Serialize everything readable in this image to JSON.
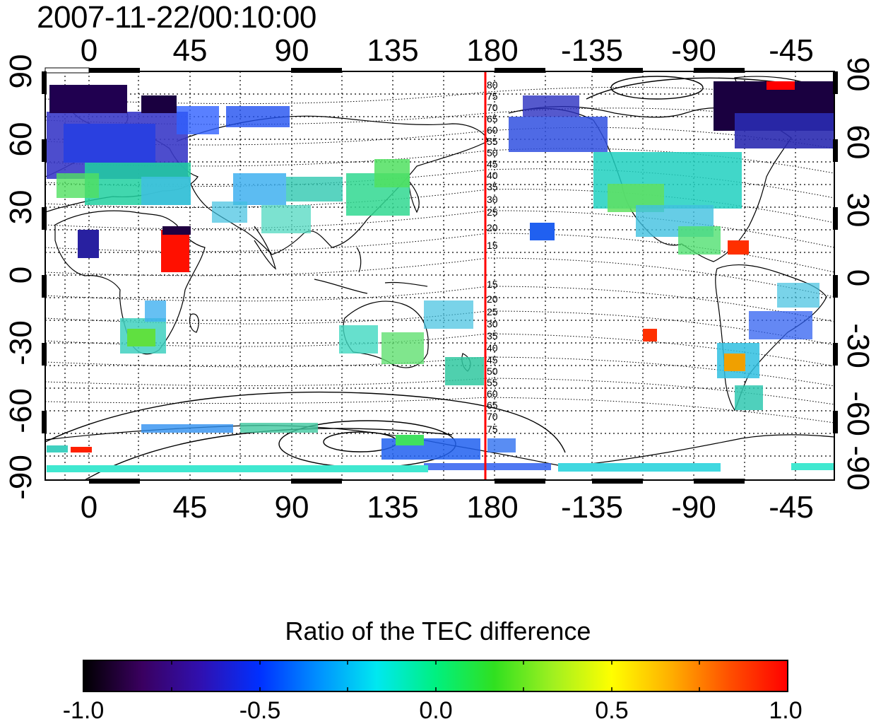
{
  "header": {
    "timestamp": "2007-11-22/00:10:00"
  },
  "map": {
    "top_axis_labels": [
      "0",
      "45",
      "90",
      "135",
      "180",
      "-135",
      "-90",
      "-45"
    ],
    "bottom_axis_labels": [
      "0",
      "45",
      "90",
      "135",
      "180",
      "-135",
      "-90",
      "-45"
    ],
    "left_axis_labels": [
      "90",
      "60",
      "30",
      "0",
      "-30",
      "-60",
      "-90"
    ],
    "right_axis_labels": [
      "90",
      "60",
      "30",
      "0",
      "-30",
      "-60",
      "-90"
    ],
    "meridian_marker": {
      "longitude": 180,
      "color": "#ff0000"
    },
    "meridian_labels_north": [
      "80",
      "75",
      "70",
      "65",
      "60",
      "55",
      "50",
      "45",
      "40",
      "35",
      "30",
      "25",
      "20",
      "15"
    ],
    "meridian_labels_south": [
      "15",
      "20",
      "25",
      "30",
      "35",
      "40",
      "45",
      "50",
      "55",
      "60",
      "65",
      "70",
      "75"
    ]
  },
  "colorbar": {
    "title": "Ratio of the TEC difference",
    "ticks": [
      "-1.0",
      "-0.5",
      "0.0",
      "0.5",
      "1.0"
    ],
    "range": [
      -1.0,
      1.0
    ],
    "colors": [
      "#000000",
      "#3a0060",
      "#3010b0",
      "#0030ff",
      "#0090ff",
      "#00e8f0",
      "#00f080",
      "#30e020",
      "#a0f020",
      "#ffff00",
      "#ffb000",
      "#ff5000",
      "#ff0000"
    ]
  }
}
